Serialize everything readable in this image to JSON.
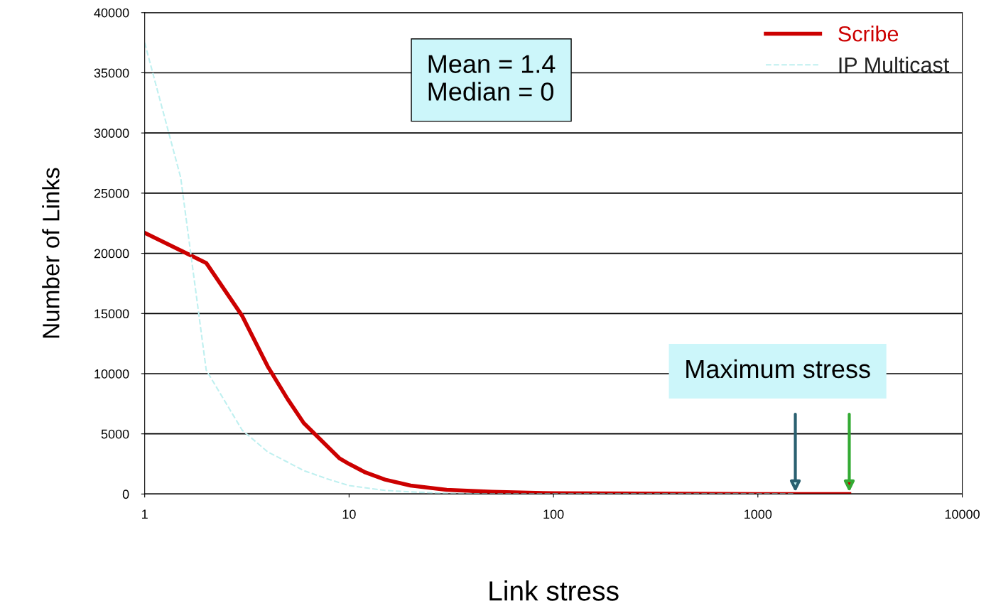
{
  "chart_data": {
    "type": "line",
    "xlabel": "Link stress",
    "ylabel": "Number of Links",
    "log": "x",
    "xlim": [
      1,
      10000
    ],
    "xticks": [
      1,
      10,
      100,
      1000,
      10000
    ],
    "ylim": [
      0,
      40000
    ],
    "yticks": [
      0,
      5000,
      10000,
      15000,
      20000,
      25000,
      30000,
      35000,
      40000
    ],
    "grid": "y",
    "legend": "top right",
    "series": [
      {
        "name": "Scribe",
        "color": "#cc0000",
        "line_style": "solid",
        "x": [
          1,
          2,
          3,
          4,
          5,
          6,
          8,
          9,
          10,
          12,
          15,
          20,
          30,
          50,
          100,
          1000,
          2800
        ],
        "values": [
          21700,
          19200,
          14800,
          10600,
          7900,
          5900,
          3800,
          2950,
          2500,
          1800,
          1200,
          700,
          350,
          180,
          60,
          0,
          0
        ]
      },
      {
        "name": "IP Multicast",
        "color": "#bff0f0",
        "line_style": "dashed",
        "x": [
          1,
          1.5,
          2,
          3,
          4,
          5,
          6,
          8,
          10,
          15,
          20,
          30,
          50,
          100,
          1000,
          1525
        ],
        "values": [
          37500,
          26300,
          10300,
          5300,
          3500,
          2650,
          1950,
          1200,
          700,
          300,
          180,
          60,
          0,
          0,
          0,
          0
        ]
      }
    ],
    "annotations": [
      "Mean = 1.4\nMedian = 0",
      "Maximum stress"
    ]
  }
}
